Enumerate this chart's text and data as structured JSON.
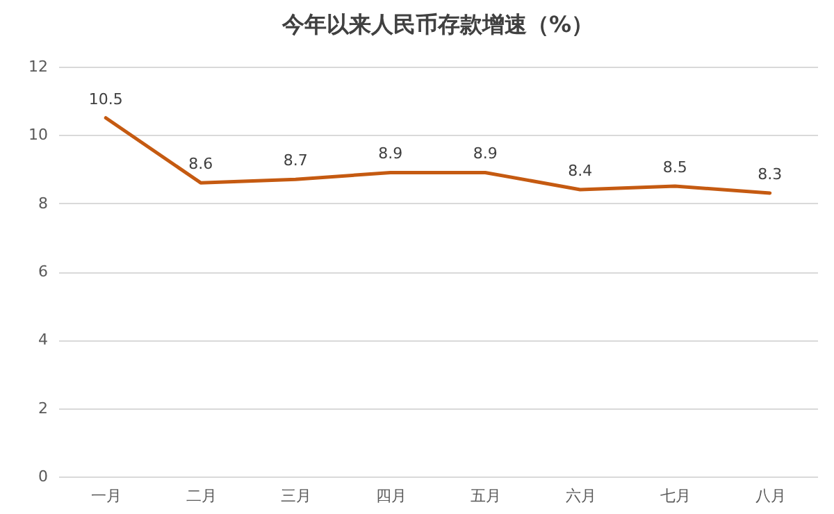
{
  "chart_data": {
    "type": "line",
    "title": "今年以来人民币存款增速（%）",
    "categories": [
      "一月",
      "二月",
      "三月",
      "四月",
      "五月",
      "六月",
      "七月",
      "八月"
    ],
    "series": [
      {
        "color": "#c55a11",
        "values": [
          10.5,
          8.6,
          8.7,
          8.9,
          8.9,
          8.4,
          8.5,
          8.3
        ]
      }
    ],
    "ylim": [
      0,
      12
    ],
    "yticks": [
      0,
      2,
      4,
      6,
      8,
      10,
      12
    ],
    "grid": "y",
    "data_labels": true
  }
}
